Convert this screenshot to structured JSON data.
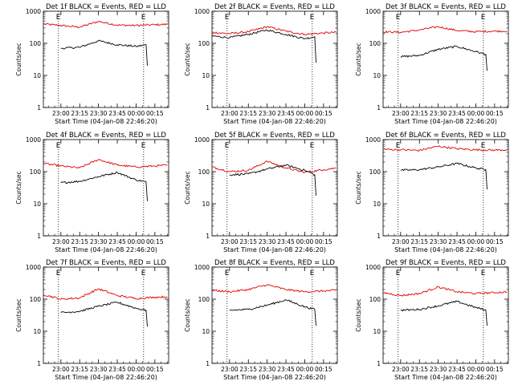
{
  "chart_data": [
    {
      "type": "line",
      "title": "Det 1f BLACK = Events, RED = LLD",
      "ylabel": "Counts/sec",
      "xlabel": "Start Time (04-Jan-08 22:46:20)",
      "x_ticks": [
        "23:00",
        "23:15",
        "23:30",
        "23:45",
        "00:00",
        "00:15"
      ],
      "y_ticks": [
        "1",
        "10",
        "100",
        "1000"
      ],
      "ylim": [
        1,
        1000
      ],
      "y_scale": "log",
      "markers": [
        {
          "label": "E",
          "time": "22:58"
        },
        {
          "label": "E",
          "time": "00:06"
        }
      ],
      "series": [
        {
          "color": "#e00000",
          "x": [
            "22:46",
            "23:00",
            "23:15",
            "23:30",
            "23:45",
            "00:00",
            "00:15",
            "00:25"
          ],
          "y": [
            400,
            360,
            320,
            480,
            370,
            360,
            380,
            390
          ]
        },
        {
          "color": "#000000",
          "x": [
            "23:00",
            "23:15",
            "23:30",
            "23:45",
            "00:00",
            "00:08",
            "00:09"
          ],
          "y": [
            70,
            75,
            120,
            90,
            80,
            90,
            20
          ]
        }
      ]
    },
    {
      "type": "line",
      "title": "Det 2f BLACK = Events, RED = LLD",
      "ylabel": "Counts/sec",
      "xlabel": "Start Time (04-Jan-08 22:46:20)",
      "x_ticks": [
        "23:00",
        "23:15",
        "23:30",
        "23:45",
        "00:00",
        "00:15"
      ],
      "y_ticks": [
        "1",
        "10",
        "100",
        "1000"
      ],
      "ylim": [
        1,
        1000
      ],
      "y_scale": "log",
      "markers": [
        {
          "label": "E",
          "time": "22:58"
        },
        {
          "label": "E",
          "time": "00:06"
        }
      ],
      "series": [
        {
          "color": "#e00000",
          "x": [
            "22:46",
            "23:00",
            "23:15",
            "23:30",
            "23:45",
            "00:00",
            "00:15",
            "00:25"
          ],
          "y": [
            220,
            200,
            230,
            330,
            240,
            190,
            210,
            220
          ]
        },
        {
          "color": "#000000",
          "x": [
            "22:46",
            "23:00",
            "23:15",
            "23:30",
            "23:45",
            "00:00",
            "00:08",
            "00:09"
          ],
          "y": [
            170,
            150,
            190,
            260,
            190,
            140,
            160,
            25
          ]
        }
      ]
    },
    {
      "type": "line",
      "title": "Det 3f BLACK = Events, RED = LLD",
      "ylabel": "Counts/sec",
      "xlabel": "Start Time (04-Jan-08 22:46:20)",
      "x_ticks": [
        "23:00",
        "23:15",
        "23:30",
        "23:45",
        "00:00",
        "00:15"
      ],
      "y_ticks": [
        "1",
        "10",
        "100",
        "1000"
      ],
      "ylim": [
        1,
        1000
      ],
      "y_scale": "log",
      "markers": [
        {
          "label": "E",
          "time": "22:58"
        },
        {
          "label": "E",
          "time": "00:06"
        }
      ],
      "series": [
        {
          "color": "#e00000",
          "x": [
            "22:46",
            "23:00",
            "23:15",
            "23:30",
            "23:45",
            "00:00",
            "00:15",
            "00:25"
          ],
          "y": [
            230,
            220,
            260,
            330,
            250,
            230,
            240,
            240
          ]
        },
        {
          "color": "#000000",
          "x": [
            "23:00",
            "23:15",
            "23:30",
            "23:45",
            "00:00",
            "00:08",
            "00:09"
          ],
          "y": [
            38,
            42,
            65,
            80,
            55,
            45,
            14
          ]
        }
      ]
    },
    {
      "type": "line",
      "title": "Det 4f BLACK = Events, RED = LLD",
      "ylabel": "Counts/sec",
      "xlabel": "Start Time (04-Jan-08 22:46:20)",
      "x_ticks": [
        "23:00",
        "23:15",
        "23:30",
        "23:45",
        "00:00",
        "00:15"
      ],
      "y_ticks": [
        "1",
        "10",
        "100",
        "1000"
      ],
      "ylim": [
        1,
        1000
      ],
      "y_scale": "log",
      "markers": [
        {
          "label": "E",
          "time": "22:58"
        },
        {
          "label": "E",
          "time": "00:06"
        }
      ],
      "series": [
        {
          "color": "#e00000",
          "x": [
            "22:46",
            "23:00",
            "23:15",
            "23:30",
            "23:45",
            "00:00",
            "00:15",
            "00:25"
          ],
          "y": [
            180,
            150,
            130,
            240,
            160,
            140,
            150,
            160
          ]
        },
        {
          "color": "#000000",
          "x": [
            "23:00",
            "23:15",
            "23:30",
            "23:45",
            "00:00",
            "00:08",
            "00:09"
          ],
          "y": [
            45,
            50,
            70,
            95,
            55,
            48,
            12
          ]
        }
      ]
    },
    {
      "type": "line",
      "title": "Det 5f BLACK = Events, RED = LLD",
      "ylabel": "Counts/sec",
      "xlabel": "Start Time (04-Jan-08 22:46:20)",
      "x_ticks": [
        "23:00",
        "23:15",
        "23:30",
        "23:45",
        "00:00",
        "00:15"
      ],
      "y_ticks": [
        "1",
        "10",
        "100",
        "1000"
      ],
      "ylim": [
        1,
        1000
      ],
      "y_scale": "log",
      "markers": [
        {
          "label": "E",
          "time": "22:58"
        },
        {
          "label": "E",
          "time": "00:06"
        }
      ],
      "series": [
        {
          "color": "#e00000",
          "x": [
            "22:46",
            "23:00",
            "23:15",
            "23:30",
            "23:45",
            "00:00",
            "00:15",
            "00:25"
          ],
          "y": [
            140,
            100,
            110,
            210,
            130,
            95,
            115,
            130
          ]
        },
        {
          "color": "#000000",
          "x": [
            "23:00",
            "23:15",
            "23:30",
            "23:45",
            "00:00",
            "00:08",
            "00:09"
          ],
          "y": [
            80,
            85,
            120,
            160,
            110,
            80,
            18
          ]
        }
      ]
    },
    {
      "type": "line",
      "title": "Det 6f BLACK = Events, RED = LLD",
      "ylabel": "Counts/sec",
      "xlabel": "Start Time (04-Jan-08 22:46:20)",
      "x_ticks": [
        "23:00",
        "23:15",
        "23:30",
        "23:45",
        "00:00",
        "00:15"
      ],
      "y_ticks": [
        "1",
        "10",
        "100",
        "1000"
      ],
      "ylim": [
        1,
        1000
      ],
      "y_scale": "log",
      "markers": [
        {
          "label": "E",
          "time": "22:58"
        },
        {
          "label": "E",
          "time": "00:06"
        }
      ],
      "series": [
        {
          "color": "#e00000",
          "x": [
            "22:46",
            "23:00",
            "23:15",
            "23:30",
            "23:45",
            "00:00",
            "00:15",
            "00:25"
          ],
          "y": [
            500,
            480,
            460,
            620,
            520,
            480,
            470,
            480
          ]
        },
        {
          "color": "#000000",
          "x": [
            "23:00",
            "23:15",
            "23:30",
            "23:45",
            "00:00",
            "00:08",
            "00:09"
          ],
          "y": [
            110,
            115,
            140,
            180,
            130,
            115,
            28
          ]
        }
      ]
    },
    {
      "type": "line",
      "title": "Det 7f BLACK = Events, RED = LLD",
      "ylabel": "Counts/sec",
      "xlabel": "Start Time (04-Jan-08 22:46:20)",
      "x_ticks": [
        "23:00",
        "23:15",
        "23:30",
        "23:45",
        "00:00",
        "00:15"
      ],
      "y_ticks": [
        "1",
        "10",
        "100",
        "1000"
      ],
      "ylim": [
        1,
        1000
      ],
      "y_scale": "log",
      "markers": [
        {
          "label": "E",
          "time": "22:58"
        },
        {
          "label": "E",
          "time": "00:06"
        }
      ],
      "series": [
        {
          "color": "#e00000",
          "x": [
            "22:46",
            "23:00",
            "23:15",
            "23:30",
            "23:45",
            "00:00",
            "00:15",
            "00:25"
          ],
          "y": [
            140,
            100,
            110,
            210,
            130,
            105,
            115,
            120
          ]
        },
        {
          "color": "#000000",
          "x": [
            "23:00",
            "23:15",
            "23:30",
            "23:45",
            "00:00",
            "00:08",
            "00:09"
          ],
          "y": [
            38,
            42,
            60,
            80,
            52,
            45,
            14
          ]
        }
      ]
    },
    {
      "type": "line",
      "title": "Det 8f BLACK = Events, RED = LLD",
      "ylabel": "Counts/sec",
      "xlabel": "Start Time (04-Jan-08 22:46:20)",
      "x_ticks": [
        "23:00",
        "23:15",
        "23:30",
        "23:45",
        "00:00",
        "00:15"
      ],
      "y_ticks": [
        "1",
        "10",
        "100",
        "1000"
      ],
      "ylim": [
        1,
        1000
      ],
      "y_scale": "log",
      "markers": [
        {
          "label": "E",
          "time": "22:58"
        },
        {
          "label": "E",
          "time": "00:06"
        }
      ],
      "series": [
        {
          "color": "#e00000",
          "x": [
            "22:46",
            "23:00",
            "23:15",
            "23:30",
            "23:45",
            "00:00",
            "00:15",
            "00:25"
          ],
          "y": [
            190,
            170,
            200,
            280,
            200,
            170,
            180,
            190
          ]
        },
        {
          "color": "#000000",
          "x": [
            "23:00",
            "23:15",
            "23:30",
            "23:45",
            "00:00",
            "00:08",
            "00:09"
          ],
          "y": [
            45,
            48,
            65,
            95,
            58,
            48,
            15
          ]
        }
      ]
    },
    {
      "type": "line",
      "title": "Det 9f BLACK = Events, RED = LLD",
      "ylabel": "Counts/sec",
      "xlabel": "Start Time (04-Jan-08 22:46:20)",
      "x_ticks": [
        "23:00",
        "23:15",
        "23:30",
        "23:45",
        "00:00",
        "00:15"
      ],
      "y_ticks": [
        "1",
        "10",
        "100",
        "1000"
      ],
      "ylim": [
        1,
        1000
      ],
      "y_scale": "log",
      "markers": [
        {
          "label": "E",
          "time": "22:58"
        },
        {
          "label": "E",
          "time": "00:06"
        }
      ],
      "series": [
        {
          "color": "#e00000",
          "x": [
            "22:46",
            "23:00",
            "23:15",
            "23:30",
            "23:45",
            "00:00",
            "00:15",
            "00:25"
          ],
          "y": [
            160,
            130,
            150,
            240,
            170,
            150,
            160,
            170
          ]
        },
        {
          "color": "#000000",
          "x": [
            "23:00",
            "23:15",
            "23:30",
            "23:45",
            "00:00",
            "00:08",
            "00:09"
          ],
          "y": [
            45,
            48,
            62,
            85,
            55,
            46,
            15
          ]
        }
      ]
    }
  ]
}
